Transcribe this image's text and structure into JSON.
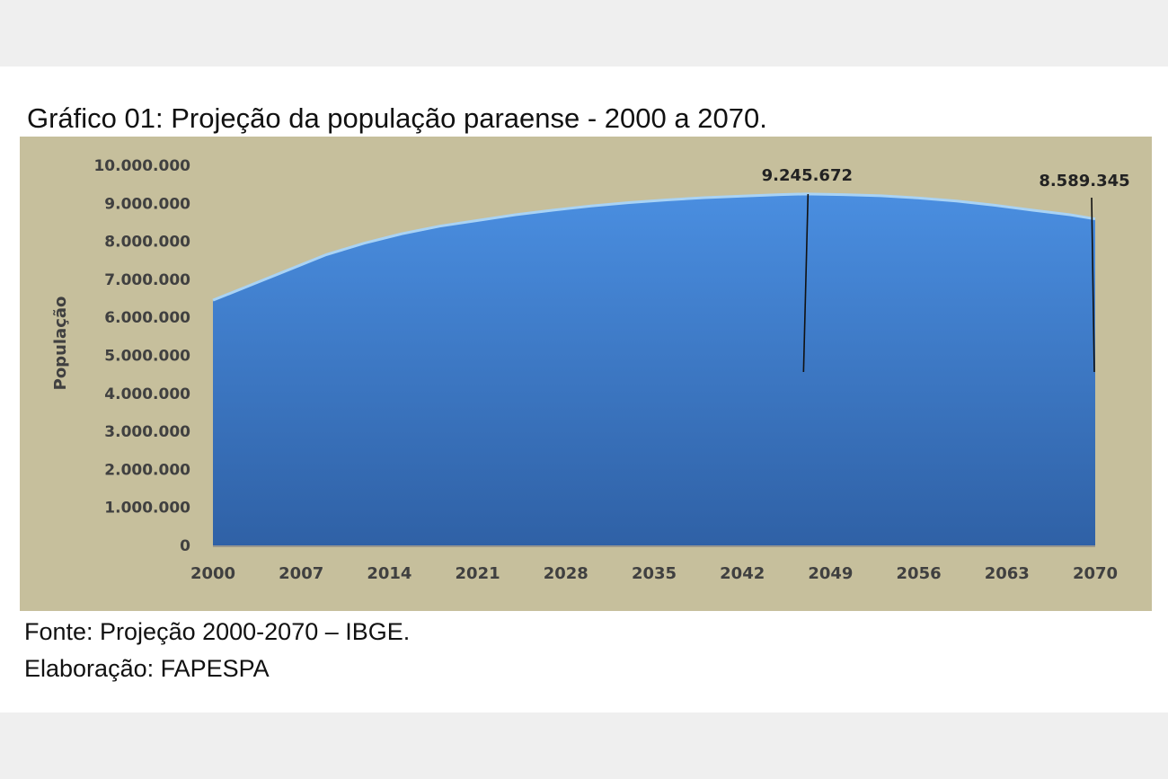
{
  "document": {
    "title": "Gráfico 01: Projeção da população paraense - 2000 a 2070.",
    "source": "Fonte: Projeção 2000-2070 – IBGE.",
    "credit": "Elaboração: FAPESPA"
  },
  "colors": {
    "plot_background": "#c6bf9c",
    "area_top": "#4a8ee0",
    "area_bottom": "#2f61a6",
    "area_edge": "#a9d3f5",
    "axis_text": "#404040"
  },
  "chart_data": {
    "type": "area",
    "title": "",
    "xlabel": "",
    "ylabel": "População",
    "ylim": [
      0,
      10000000
    ],
    "yticks": [
      0,
      1000000,
      2000000,
      3000000,
      4000000,
      5000000,
      6000000,
      7000000,
      8000000,
      9000000,
      10000000
    ],
    "ytick_labels": [
      "0",
      "1.000.000",
      "2.000.000",
      "3.000.000",
      "4.000.000",
      "5.000.000",
      "6.000.000",
      "7.000.000",
      "8.000.000",
      "9.000.000",
      "10.000.000"
    ],
    "xlim": [
      2000,
      2070
    ],
    "xticks": [
      2000,
      2007,
      2014,
      2021,
      2028,
      2035,
      2042,
      2049,
      2056,
      2063,
      2070
    ],
    "x": [
      2000,
      2003,
      2006,
      2009,
      2012,
      2015,
      2018,
      2021,
      2024,
      2027,
      2030,
      2033,
      2036,
      2039,
      2042,
      2045,
      2047,
      2050,
      2053,
      2056,
      2059,
      2062,
      2065,
      2068,
      2070
    ],
    "values": [
      6450000,
      6850000,
      7250000,
      7650000,
      7950000,
      8200000,
      8400000,
      8550000,
      8700000,
      8820000,
      8930000,
      9020000,
      9090000,
      9150000,
      9190000,
      9230000,
      9245672,
      9230000,
      9200000,
      9140000,
      9060000,
      8950000,
      8820000,
      8700000,
      8589345
    ],
    "annotations": [
      {
        "x": 2047,
        "y": 9245672,
        "label": "9.245.672"
      },
      {
        "x": 2070,
        "y": 8589345,
        "label": "8.589.345"
      }
    ],
    "grid": false,
    "legend": "none"
  }
}
